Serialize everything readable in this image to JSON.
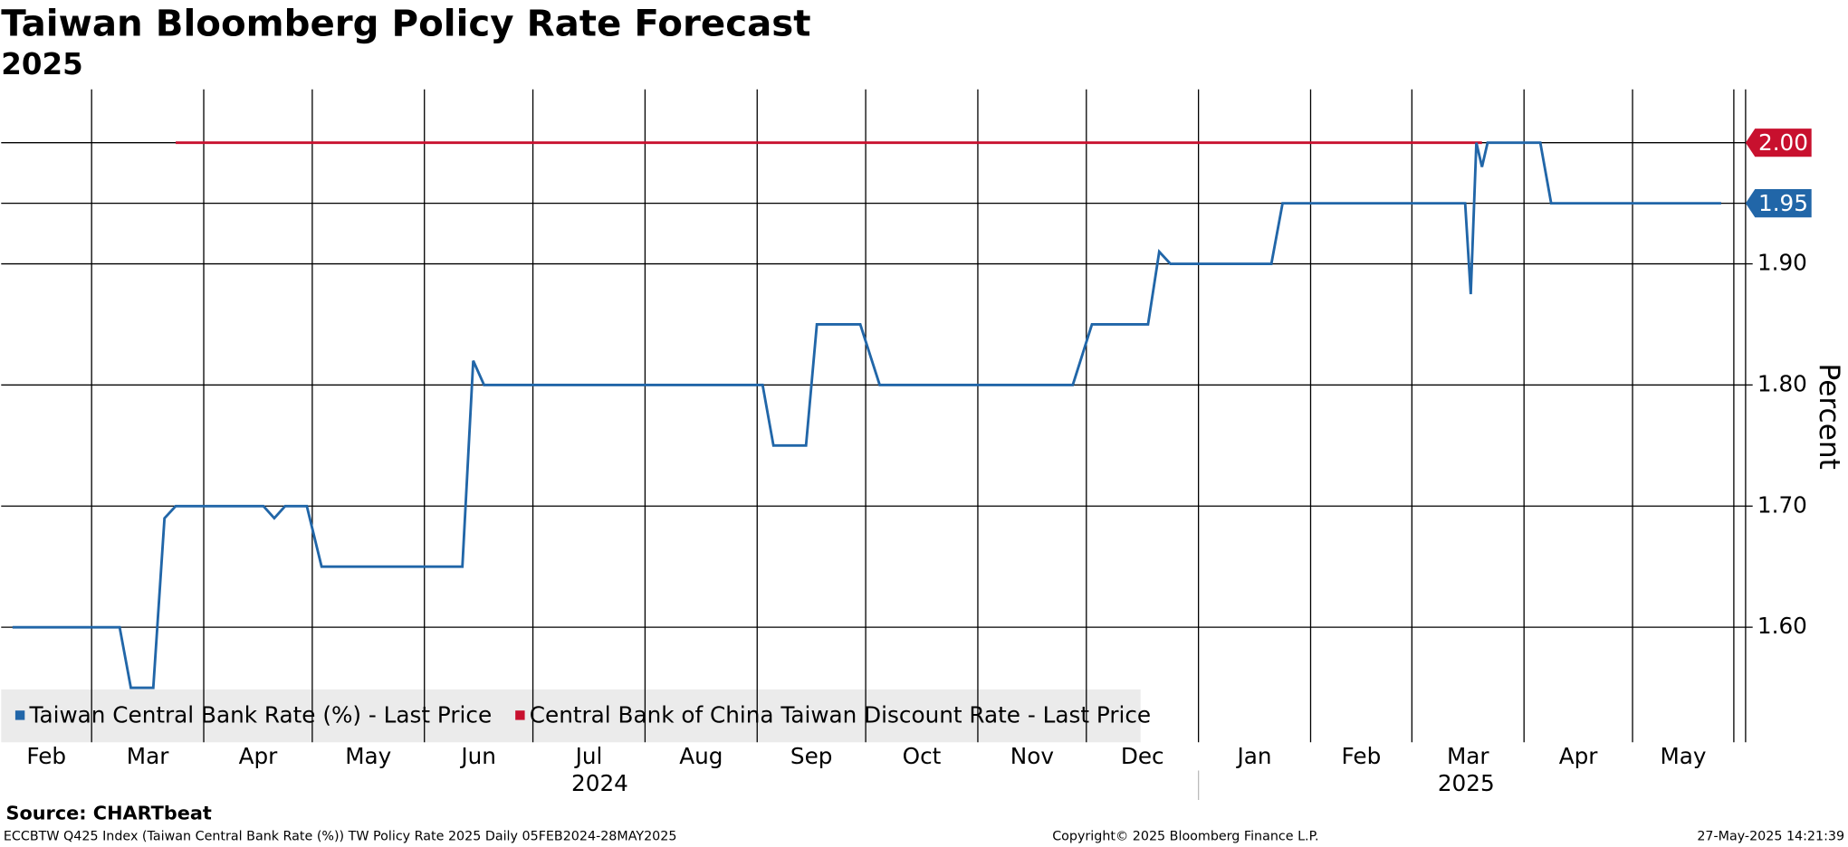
{
  "chart_data": {
    "type": "line",
    "title": "Taiwan Bloomberg Policy Rate Forecast",
    "subtitle": "2025",
    "y_axis_label": "Percent",
    "xlim": [
      "2024-02-05",
      "2025-05-28"
    ],
    "xticks": [
      {
        "value": "2024-02",
        "label": "Feb"
      },
      {
        "value": "2024-03",
        "label": "Mar"
      },
      {
        "value": "2024-04",
        "label": "Apr"
      },
      {
        "value": "2024-05",
        "label": "May"
      },
      {
        "value": "2024-06",
        "label": "Jun"
      },
      {
        "value": "2024-07",
        "label": "Jul"
      },
      {
        "value": "2024-08",
        "label": "Aug"
      },
      {
        "value": "2024-09",
        "label": "Sep"
      },
      {
        "value": "2024-10",
        "label": "Oct"
      },
      {
        "value": "2024-11",
        "label": "Nov"
      },
      {
        "value": "2024-12",
        "label": "Dec"
      },
      {
        "value": "2025-01",
        "label": "Jan"
      },
      {
        "value": "2025-02",
        "label": "Feb"
      },
      {
        "value": "2025-03",
        "label": "Mar"
      },
      {
        "value": "2025-04",
        "label": "Apr"
      },
      {
        "value": "2025-05",
        "label": "May"
      }
    ],
    "year_labels": [
      "2024",
      "2025"
    ],
    "ylim": [
      1.505,
      2.044
    ],
    "yticks": [
      {
        "value": 1.6,
        "label": "1.60"
      },
      {
        "value": 1.7,
        "label": "1.70"
      },
      {
        "value": 1.8,
        "label": "1.80"
      },
      {
        "value": 1.9,
        "label": "1.90"
      }
    ],
    "grid": true,
    "x": [
      "2024-02",
      "2024-02",
      "2024-02",
      "2024-02",
      "2024-03",
      "2024-03",
      "2024-03",
      "2024-03",
      "2024-03",
      "2024-03",
      "2024-03",
      "2024-03",
      "2024-03",
      "2024-03",
      "2024-04",
      "2024-04",
      "2024-04",
      "2024-04",
      "2024-04",
      "2024-04",
      "2024-04",
      "2024-04",
      "2024-04",
      "2024-04",
      "2024-05",
      "2024-05",
      "2024-05",
      "2024-05",
      "2024-05",
      "2024-05",
      "2024-06",
      "2024-06",
      "2024-06",
      "2024-06",
      "2024-06",
      "2024-06",
      "2024-06",
      "2024-06",
      "2024-06",
      "2024-06",
      "2024-07",
      "2024-07",
      "2024-07",
      "2024-07",
      "2024-08",
      "2024-08",
      "2024-08",
      "2024-08",
      "2024-09",
      "2024-09",
      "2024-09",
      "2024-09",
      "2024-09",
      "2024-09",
      "2024-09",
      "2024-09",
      "2024-09",
      "2024-09",
      "2024-10",
      "2024-10",
      "2024-10",
      "2024-10",
      "2024-11",
      "2024-11",
      "2024-11",
      "2024-11",
      "2024-12",
      "2024-12",
      "2024-12",
      "2024-12",
      "2024-12",
      "2024-12",
      "2024-12",
      "2024-12",
      "2024-12",
      "2024-12",
      "2025-01",
      "2025-01",
      "2025-01",
      "2025-01",
      "2025-01",
      "2025-01",
      "2025-01",
      "2025-01",
      "2025-01",
      "2025-01",
      "2025-02",
      "2025-02",
      "2025-02",
      "2025-02",
      "2025-03",
      "2025-03",
      "2025-03",
      "2025-03",
      "2025-03",
      "2025-03",
      "2025-03",
      "2025-03",
      "2025-03",
      "2025-03",
      "2025-03",
      "2025-03",
      "2025-03",
      "2025-03",
      "2025-03",
      "2025-03",
      "2025-03",
      "2025-03",
      "2025-03",
      "2025-03",
      "2025-04",
      "2025-04",
      "2025-04",
      "2025-04",
      "2025-04",
      "2025-04",
      "2025-04",
      "2025-04",
      "2025-04",
      "2025-04",
      "2025-05",
      "2025-05",
      "2025-05",
      "2025-05"
    ],
    "series": [
      {
        "name": "Taiwan Central Bank Rate (%) - Last Price",
        "color": "#2166a8",
        "last_label": "1.95",
        "values": [
          1.6,
          1.6,
          1.6,
          1.6,
          1.6,
          1.6,
          1.6,
          1.55,
          1.55,
          1.55,
          1.69,
          1.7,
          1.7,
          1.7,
          1.7,
          1.7,
          1.7,
          1.7,
          1.7,
          1.7,
          1.69,
          1.7,
          1.7,
          1.7,
          1.65,
          1.65,
          1.65,
          1.65,
          1.65,
          1.65,
          1.65,
          1.65,
          1.65,
          1.65,
          1.82,
          1.8,
          1.8,
          1.8,
          1.8,
          1.8,
          1.8,
          1.8,
          1.8,
          1.8,
          1.8,
          1.8,
          1.8,
          1.8,
          1.8,
          1.75,
          1.75,
          1.75,
          1.75,
          1.85,
          1.85,
          1.85,
          1.85,
          1.85,
          1.8,
          1.8,
          1.8,
          1.8,
          1.8,
          1.8,
          1.8,
          1.8,
          1.85,
          1.85,
          1.85,
          1.85,
          1.85,
          1.85,
          1.91,
          1.9,
          1.9,
          1.9,
          1.9,
          1.9,
          1.9,
          1.9,
          1.9,
          1.9,
          1.9,
          1.95,
          1.95,
          1.95,
          1.95,
          1.95,
          1.95,
          1.95,
          1.95,
          1.95,
          1.95,
          1.95,
          1.95,
          1.95,
          1.95,
          1.95,
          1.95,
          1.95,
          1.875,
          2,
          1.98,
          2,
          2,
          2,
          2,
          2,
          2,
          2,
          2,
          2,
          1.95,
          1.95,
          1.95,
          1.95,
          1.95,
          1.95,
          1.95,
          1.95,
          1.95,
          1.95,
          1.95,
          1.95
        ]
      },
      {
        "name": "Central Bank of China Taiwan Discount Rate - Last Price",
        "color": "#c8102e",
        "last_label": "2.00",
        "values": [
          null,
          null,
          null,
          null,
          null,
          null,
          null,
          null,
          null,
          null,
          null,
          2,
          2,
          2,
          2,
          2,
          2,
          2,
          2,
          2,
          2,
          2,
          2,
          2,
          2,
          2,
          2,
          2,
          2,
          2,
          2,
          2,
          2,
          2,
          2,
          2,
          2,
          2,
          2,
          2,
          2,
          2,
          2,
          2,
          2,
          2,
          2,
          2,
          2,
          2,
          2,
          2,
          2,
          2,
          2,
          2,
          2,
          2,
          2,
          2,
          2,
          2,
          2,
          2,
          2,
          2,
          2,
          2,
          2,
          2,
          2,
          2,
          2,
          2,
          2,
          2,
          2,
          2,
          2,
          2,
          2,
          2,
          2,
          2,
          2,
          2,
          2,
          2,
          2,
          2,
          2,
          2,
          2,
          2,
          2,
          2,
          2,
          2,
          2,
          2,
          2,
          2,
          2,
          null,
          null,
          null,
          null,
          null,
          null,
          null,
          null,
          null,
          null,
          null,
          null,
          null,
          null,
          null,
          null,
          null,
          null,
          null,
          null,
          null
        ]
      }
    ],
    "source": "Source: CHARTbeat",
    "footer_left": "ECCBTW Q425 Index (Taiwan Central Bank Rate (%)) TW Policy Rate 2025  Daily 05FEB2024-28MAY2025",
    "footer_center": "Copyright© 2025 Bloomberg Finance L.P.",
    "footer_right": "27-May-2025 14:21:39"
  }
}
